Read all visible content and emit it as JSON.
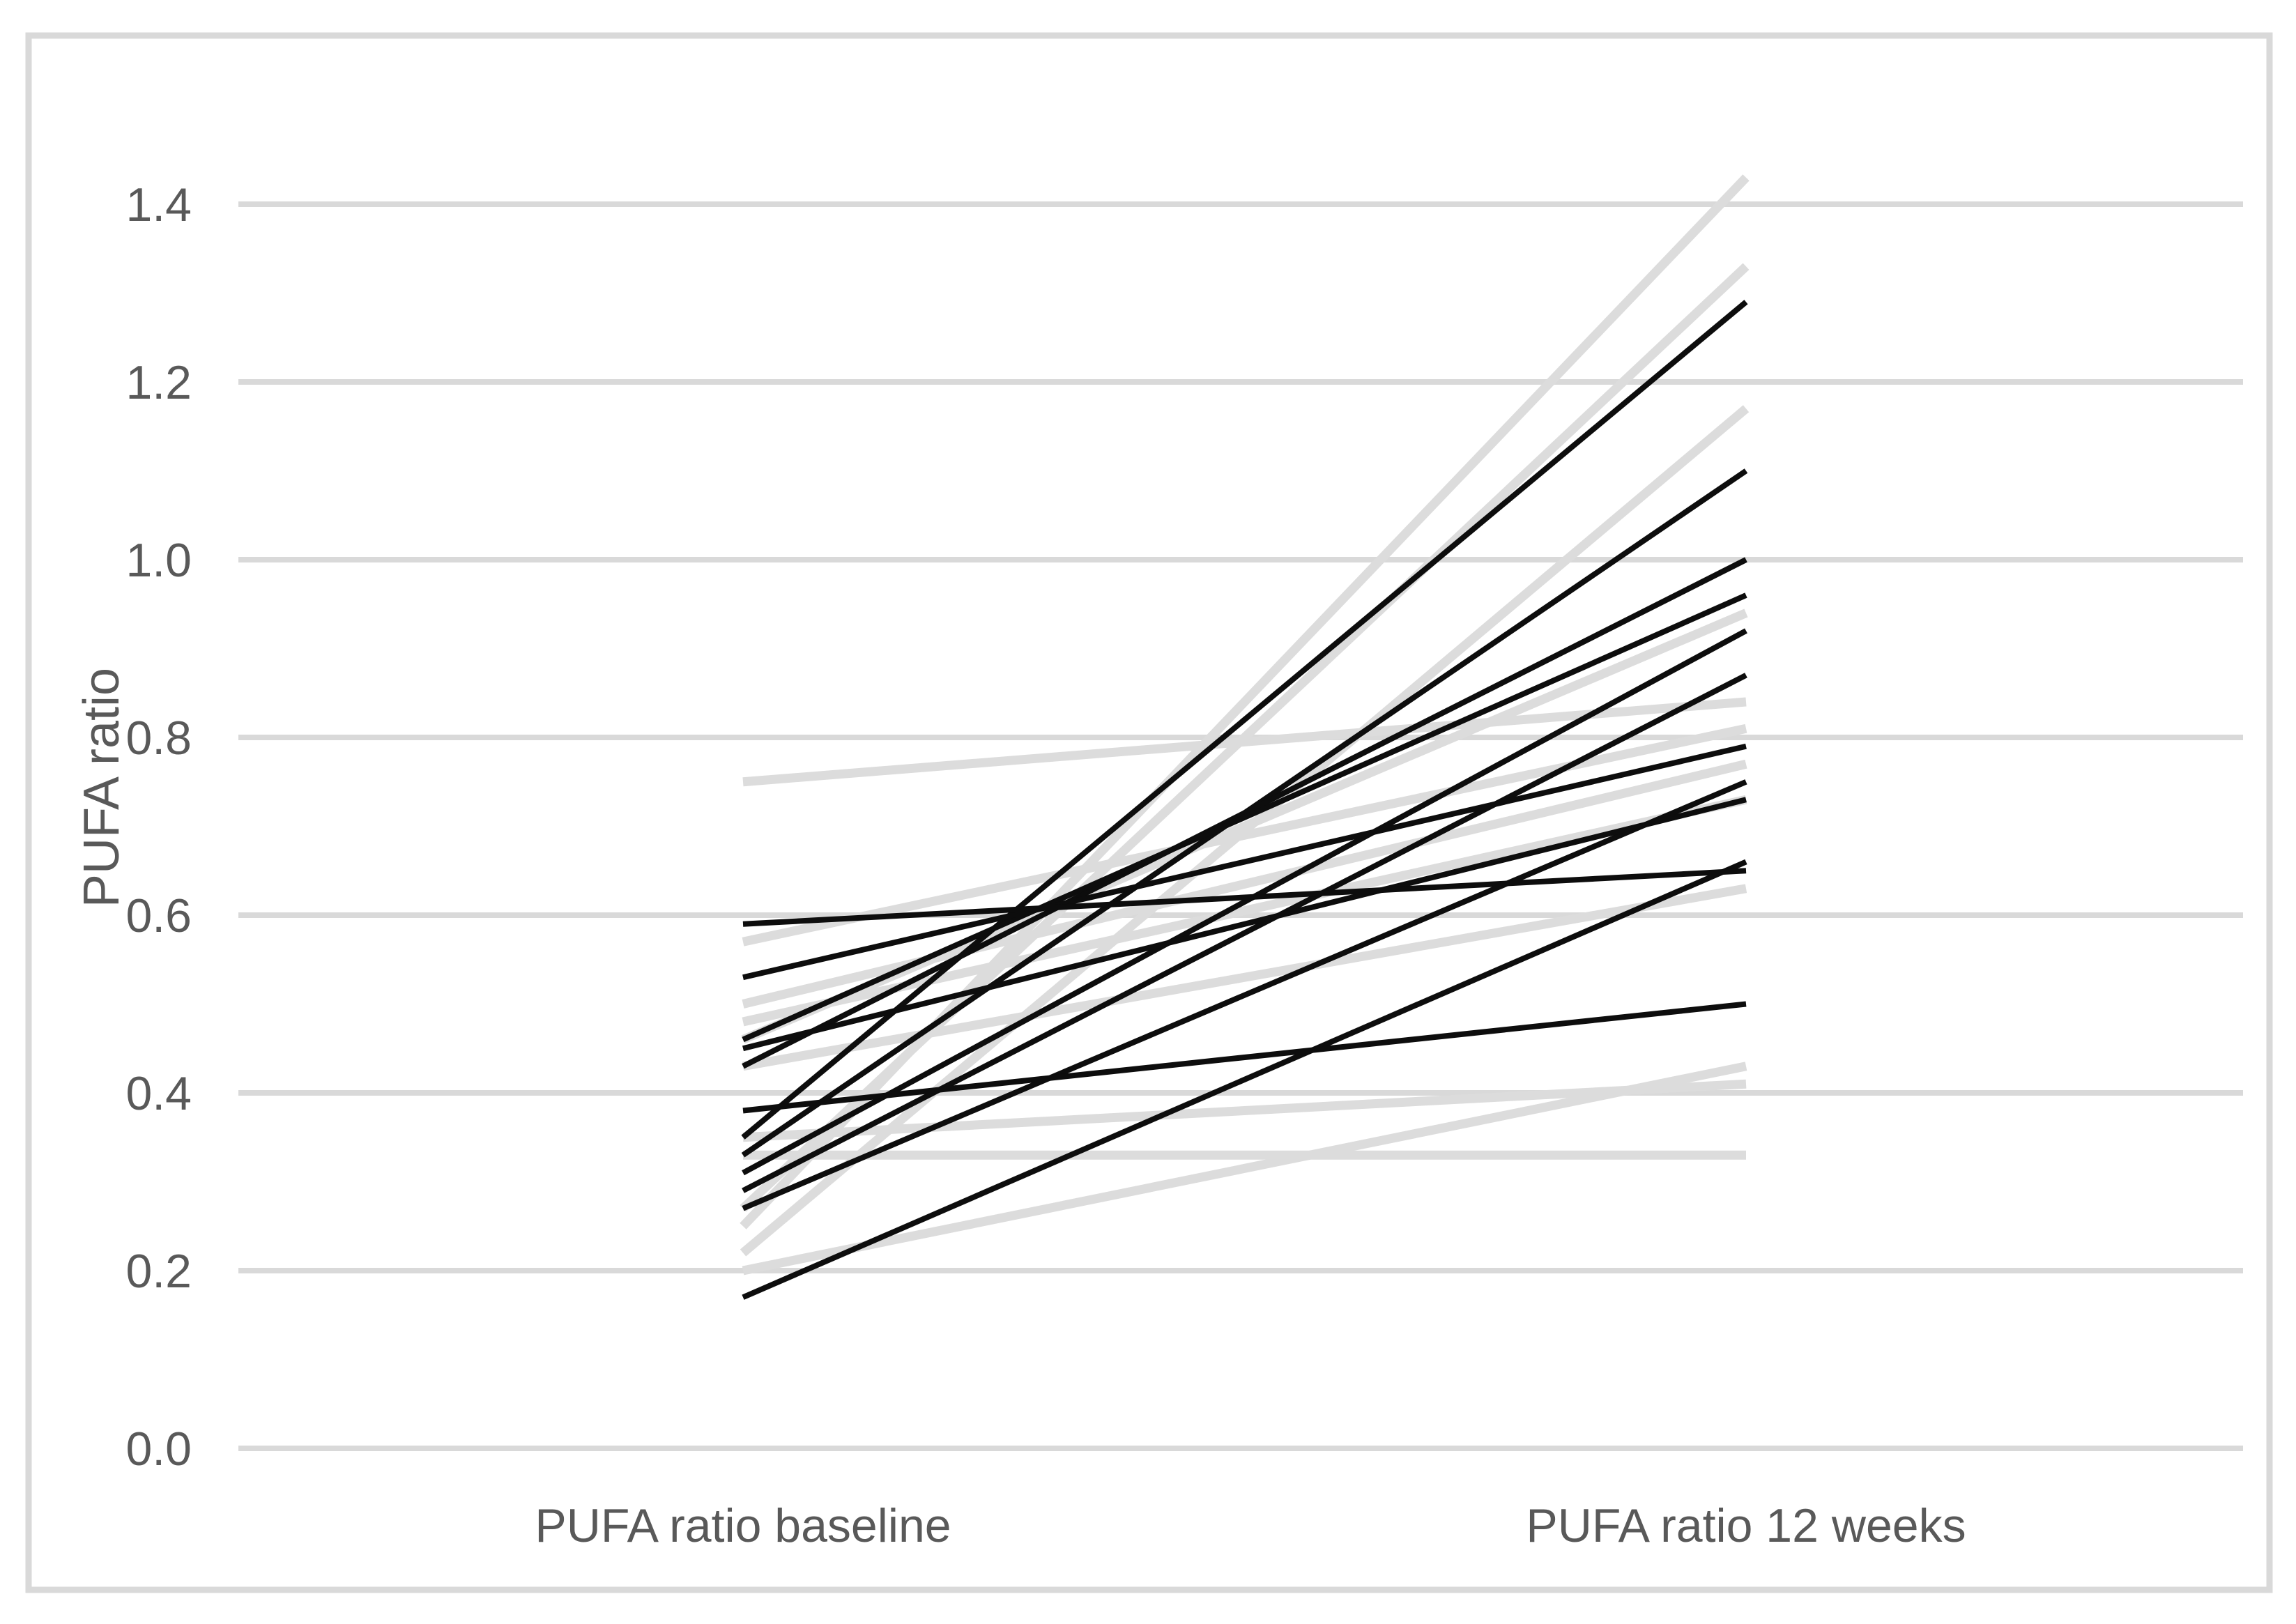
{
  "chart_data": {
    "type": "line",
    "subtype": "slope-chart-individual-participants",
    "title": "",
    "ylabel": "PUFA ratio",
    "xlabel": "",
    "categories": [
      "PUFA ratio baseline",
      "PUFA ratio 12 weeks"
    ],
    "ylim": [
      0.0,
      1.4
    ],
    "ytick_step": 0.2,
    "ytick_labels": [
      "0.0",
      "0.2",
      "0.4",
      "0.6",
      "0.8",
      "1.0",
      "1.2",
      "1.4"
    ],
    "grid": "horizontal",
    "legend": "none",
    "series": [
      {
        "group": "light",
        "values": [
          0.25,
          1.43
        ]
      },
      {
        "group": "light",
        "values": [
          0.27,
          1.33
        ]
      },
      {
        "group": "light",
        "values": [
          0.22,
          1.17
        ]
      },
      {
        "group": "light",
        "values": [
          0.46,
          0.94
        ]
      },
      {
        "group": "light",
        "values": [
          0.75,
          0.84
        ]
      },
      {
        "group": "light",
        "values": [
          0.57,
          0.81
        ]
      },
      {
        "group": "light",
        "values": [
          0.5,
          0.77
        ]
      },
      {
        "group": "light",
        "values": [
          0.48,
          0.73
        ]
      },
      {
        "group": "light",
        "values": [
          0.43,
          0.63
        ]
      },
      {
        "group": "light",
        "values": [
          0.2,
          0.43
        ]
      },
      {
        "group": "light",
        "values": [
          0.35,
          0.41
        ]
      },
      {
        "group": "light",
        "values": [
          0.33,
          0.33
        ]
      },
      {
        "group": "dark",
        "values": [
          0.35,
          1.29
        ]
      },
      {
        "group": "dark",
        "values": [
          0.33,
          1.1
        ]
      },
      {
        "group": "dark",
        "values": [
          0.43,
          1.0
        ]
      },
      {
        "group": "dark",
        "values": [
          0.46,
          0.96
        ]
      },
      {
        "group": "dark",
        "values": [
          0.31,
          0.92
        ]
      },
      {
        "group": "dark",
        "values": [
          0.29,
          0.87
        ]
      },
      {
        "group": "dark",
        "values": [
          0.53,
          0.79
        ]
      },
      {
        "group": "dark",
        "values": [
          0.27,
          0.75
        ]
      },
      {
        "group": "dark",
        "values": [
          0.45,
          0.73
        ]
      },
      {
        "group": "dark",
        "values": [
          0.17,
          0.66
        ]
      },
      {
        "group": "dark",
        "values": [
          0.59,
          0.65
        ]
      },
      {
        "group": "dark",
        "values": [
          0.38,
          0.5
        ]
      }
    ],
    "colors": {
      "dark_line": "#0d0d0d",
      "light_line": "#dcdcdc",
      "gridline": "#d9d9d9",
      "frame_border": "#d9d9d9",
      "text": "#595959",
      "background": "#ffffff"
    }
  }
}
